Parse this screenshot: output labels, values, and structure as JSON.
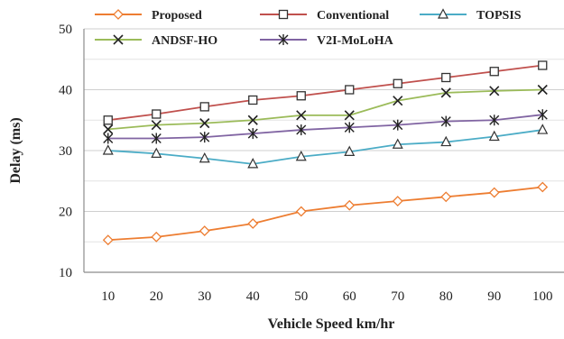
{
  "chart_data": {
    "type": "line",
    "title": "",
    "xlabel": "Vehicle Speed km/hr",
    "ylabel": "Delay (ms)",
    "x": [
      10,
      20,
      30,
      40,
      50,
      60,
      70,
      80,
      90,
      100
    ],
    "x_ticks": [
      "10",
      "20",
      "30",
      "40",
      "50",
      "60",
      "70",
      "80",
      "90",
      "100"
    ],
    "ylim": [
      10,
      50
    ],
    "y_ticks": [
      "10",
      "20",
      "30",
      "40",
      "50"
    ],
    "y_tick_values": [
      10,
      20,
      30,
      40,
      50
    ],
    "grid": "horizontal",
    "legend_position": "top",
    "series": [
      {
        "name": "Proposed",
        "marker": "diamond",
        "color": "#ED7D31",
        "values": [
          15.3,
          15.8,
          16.8,
          18.0,
          20.0,
          21.0,
          21.7,
          22.4,
          23.1,
          24.0
        ]
      },
      {
        "name": "Conventional",
        "marker": "square",
        "color": "#C0504D",
        "values": [
          35.0,
          36.0,
          37.2,
          38.3,
          39.0,
          40.0,
          41.0,
          42.0,
          43.0,
          44.0
        ]
      },
      {
        "name": "TOPSIS",
        "marker": "triangle",
        "color": "#4BACC6",
        "values": [
          30.0,
          29.5,
          28.7,
          27.8,
          29.0,
          29.8,
          31.0,
          31.4,
          32.3,
          33.4
        ]
      },
      {
        "name": "ANDSF-HO",
        "marker": "x",
        "color": "#9BBB59",
        "values": [
          33.5,
          34.2,
          34.5,
          35.0,
          35.8,
          35.8,
          38.2,
          39.5,
          39.8,
          40.0
        ]
      },
      {
        "name": "V2I-MoLoHA",
        "marker": "star",
        "color": "#8064A2",
        "values": [
          32.0,
          32.0,
          32.2,
          32.8,
          33.4,
          33.8,
          34.2,
          34.8,
          35.0,
          35.9
        ]
      }
    ]
  }
}
